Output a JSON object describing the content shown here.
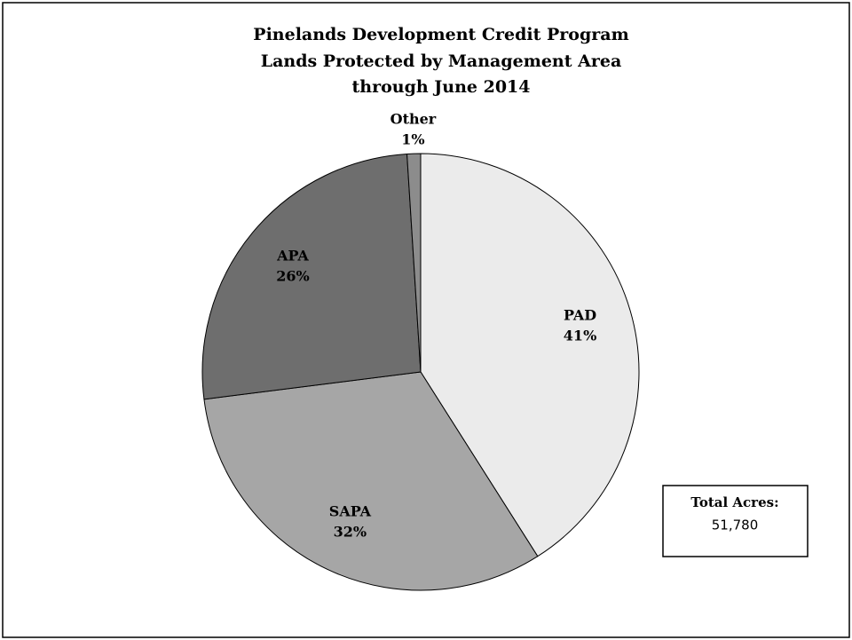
{
  "chart_data": {
    "type": "pie",
    "title": [
      "Pinelands Development Credit Program",
      "Lands Protected by Management Area",
      "through June 2014"
    ],
    "categories": [
      "PAD",
      "SAPA",
      "APA",
      "Other"
    ],
    "values": [
      41,
      32,
      26,
      1
    ],
    "value_labels": [
      "41%",
      "32%",
      "26%",
      "1%"
    ],
    "colors": [
      "#ebebeb",
      "#a6a6a6",
      "#6e6e6e",
      "#8c8c8c"
    ],
    "annotation": {
      "label": "Total Acres:",
      "value": "51,780"
    }
  }
}
